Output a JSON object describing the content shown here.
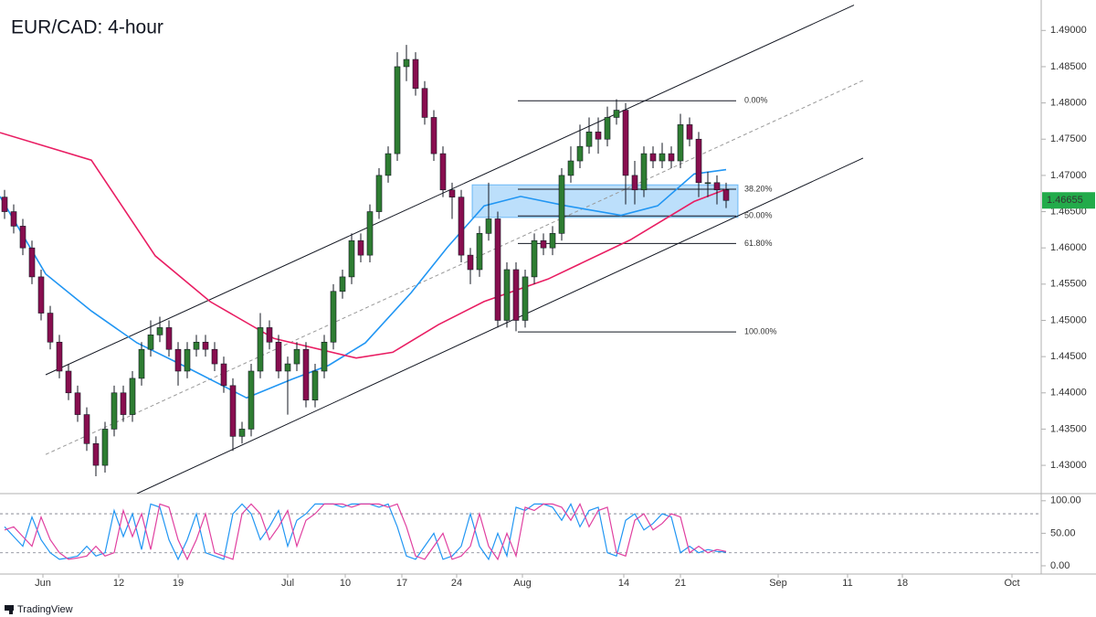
{
  "chart_data": [
    {
      "type": "candlestick",
      "title": "EUR/CAD: 4-hour",
      "xlim": [
        -0.5,
        113.5
      ],
      "xticks": [
        {
          "value": 4.2,
          "label": "Jun"
        },
        {
          "value": 12.5,
          "label": "12"
        },
        {
          "value": 19,
          "label": "19"
        },
        {
          "value": 31,
          "label": "Jul"
        },
        {
          "value": 37.3,
          "label": "10"
        },
        {
          "value": 43.5,
          "label": "17"
        },
        {
          "value": 49.5,
          "label": "24"
        },
        {
          "value": 56.7,
          "label": "Aug"
        },
        {
          "value": 67.8,
          "label": "14"
        },
        {
          "value": 74,
          "label": "21"
        },
        {
          "value": 84.7,
          "label": "Sep"
        },
        {
          "value": 92.3,
          "label": "11"
        },
        {
          "value": 98.3,
          "label": "18"
        },
        {
          "value": 110.3,
          "label": "Oct"
        }
      ],
      "ylim": [
        1.4261,
        1.4942
      ],
      "yticks": [
        {
          "value": 1.49,
          "label": "1.49000"
        },
        {
          "value": 1.485,
          "label": "1.48500"
        },
        {
          "value": 1.48,
          "label": "1.48000"
        },
        {
          "value": 1.475,
          "label": "1.47500"
        },
        {
          "value": 1.47,
          "label": "1.47000"
        },
        {
          "value": 1.465,
          "label": "1.46500"
        },
        {
          "value": 1.46,
          "label": "1.46000"
        },
        {
          "value": 1.455,
          "label": "1.45500"
        },
        {
          "value": 1.45,
          "label": "1.45000"
        },
        {
          "value": 1.445,
          "label": "1.44500"
        },
        {
          "value": 1.44,
          "label": "1.44000"
        },
        {
          "value": 1.435,
          "label": "1.43500"
        },
        {
          "value": 1.43,
          "label": "1.43000"
        }
      ],
      "x": [
        0,
        1,
        2,
        3,
        4,
        5,
        6,
        7,
        8,
        9,
        10,
        11,
        12,
        13,
        14,
        15,
        16,
        17,
        18,
        19,
        20,
        21,
        22,
        23,
        24,
        25,
        26,
        27,
        28,
        29,
        30,
        31,
        32,
        33,
        34,
        35,
        36,
        37,
        38,
        39,
        40,
        41,
        42,
        43,
        44,
        45,
        46,
        47,
        48,
        49,
        50,
        51,
        52,
        53,
        54,
        55,
        56,
        57,
        58,
        59,
        60,
        61,
        62,
        63,
        64,
        65,
        66,
        67,
        68,
        69,
        70,
        71,
        72,
        73,
        74,
        75,
        76,
        77,
        78,
        79
      ],
      "open": [
        1.467,
        1.465,
        1.463,
        1.46,
        1.456,
        1.451,
        1.447,
        1.443,
        1.44,
        1.437,
        1.433,
        1.43,
        1.435,
        1.44,
        1.437,
        1.442,
        1.446,
        1.448,
        1.449,
        1.446,
        1.443,
        1.446,
        1.447,
        1.446,
        1.444,
        1.441,
        1.434,
        1.435,
        1.443,
        1.449,
        1.447,
        1.443,
        1.444,
        1.446,
        1.439,
        1.443,
        1.447,
        1.454,
        1.456,
        1.461,
        1.459,
        1.465,
        1.47,
        1.473,
        1.485,
        1.486,
        1.482,
        1.478,
        1.473,
        1.468,
        1.467,
        1.459,
        1.457,
        1.462,
        1.464,
        1.45,
        1.457,
        1.45,
        1.456,
        1.461,
        1.46,
        1.462,
        1.47,
        1.472,
        1.474,
        1.476,
        1.475,
        1.478,
        1.479,
        1.47,
        1.468,
        1.473,
        1.472,
        1.473,
        1.472,
        1.477,
        1.475,
        1.469,
        1.469,
        1.468
      ],
      "high": [
        1.468,
        1.466,
        1.464,
        1.461,
        1.457,
        1.452,
        1.448,
        1.444,
        1.441,
        1.438,
        1.434,
        1.436,
        1.441,
        1.441,
        1.443,
        1.447,
        1.45,
        1.4505,
        1.45,
        1.447,
        1.447,
        1.448,
        1.448,
        1.447,
        1.445,
        1.442,
        1.436,
        1.444,
        1.451,
        1.45,
        1.448,
        1.445,
        1.447,
        1.447,
        1.444,
        1.448,
        1.455,
        1.457,
        1.462,
        1.462,
        1.466,
        1.471,
        1.474,
        1.487,
        1.488,
        1.487,
        1.483,
        1.479,
        1.474,
        1.469,
        1.468,
        1.46,
        1.463,
        1.469,
        1.465,
        1.458,
        1.458,
        1.457,
        1.462,
        1.462,
        1.463,
        1.471,
        1.474,
        1.477,
        1.478,
        1.478,
        1.4795,
        1.4805,
        1.48,
        1.472,
        1.474,
        1.474,
        1.4745,
        1.474,
        1.4785,
        1.478,
        1.476,
        1.4705,
        1.47,
        1.469
      ],
      "low": [
        1.464,
        1.462,
        1.459,
        1.455,
        1.45,
        1.446,
        1.442,
        1.439,
        1.436,
        1.432,
        1.4285,
        1.429,
        1.434,
        1.436,
        1.436,
        1.441,
        1.445,
        1.447,
        1.445,
        1.441,
        1.442,
        1.445,
        1.445,
        1.443,
        1.44,
        1.432,
        1.433,
        1.434,
        1.442,
        1.446,
        1.442,
        1.437,
        1.443,
        1.438,
        1.438,
        1.442,
        1.446,
        1.453,
        1.455,
        1.458,
        1.458,
        1.464,
        1.469,
        1.472,
        1.483,
        1.481,
        1.477,
        1.472,
        1.467,
        1.464,
        1.458,
        1.455,
        1.456,
        1.461,
        1.449,
        1.449,
        1.4485,
        1.449,
        1.455,
        1.459,
        1.459,
        1.461,
        1.469,
        1.471,
        1.473,
        1.473,
        1.474,
        1.477,
        1.466,
        1.466,
        1.467,
        1.471,
        1.471,
        1.471,
        1.471,
        1.474,
        1.467,
        1.467,
        1.466,
        1.4655
      ],
      "close": [
        1.465,
        1.463,
        1.46,
        1.456,
        1.451,
        1.447,
        1.443,
        1.44,
        1.437,
        1.433,
        1.43,
        1.435,
        1.44,
        1.437,
        1.442,
        1.446,
        1.448,
        1.449,
        1.446,
        1.443,
        1.446,
        1.447,
        1.446,
        1.444,
        1.441,
        1.434,
        1.435,
        1.443,
        1.449,
        1.447,
        1.443,
        1.444,
        1.446,
        1.439,
        1.443,
        1.447,
        1.454,
        1.456,
        1.461,
        1.459,
        1.465,
        1.47,
        1.473,
        1.485,
        1.486,
        1.482,
        1.478,
        1.473,
        1.468,
        1.467,
        1.459,
        1.457,
        1.462,
        1.464,
        1.45,
        1.457,
        1.45,
        1.456,
        1.461,
        1.46,
        1.462,
        1.47,
        1.472,
        1.474,
        1.476,
        1.475,
        1.478,
        1.479,
        1.47,
        1.468,
        1.473,
        1.472,
        1.473,
        1.472,
        1.477,
        1.475,
        1.469,
        1.469,
        1.468,
        1.46655
      ],
      "up_color": "#2e7d32",
      "down_color": "#880e4f",
      "last_price": 1.46655,
      "last_price_color": "#22ab4a",
      "moving_averages": [
        {
          "color": "#2196f3",
          "x": [
            -0.5,
            4.5,
            9.5,
            14.5,
            19.5,
            26.5,
            31.5,
            35.5,
            39.5,
            44.5,
            48.5,
            52.5,
            56.5,
            61.5,
            67.5,
            71.5,
            75.5,
            79
          ],
          "values": [
            1.4671,
            1.4564,
            1.4513,
            1.4469,
            1.4438,
            1.4393,
            1.4419,
            1.4438,
            1.4469,
            1.4538,
            1.4601,
            1.4658,
            1.4671,
            1.4658,
            1.4645,
            1.4658,
            1.4702,
            1.4708
          ]
        },
        {
          "color": "#e91e63",
          "x": [
            -0.5,
            9.5,
            16.5,
            22.5,
            29.5,
            38.5,
            42.5,
            47.5,
            52.5,
            59.5,
            68.5,
            75.5,
            79
          ],
          "values": [
            1.4759,
            1.4721,
            1.4589,
            1.4526,
            1.4475,
            1.4448,
            1.4456,
            1.4494,
            1.4526,
            1.4557,
            1.4611,
            1.4664,
            1.4681
          ]
        }
      ],
      "trendlines": [
        {
          "x": [
            4.5,
            93
          ],
          "values": [
            1.4425,
            1.4935
          ],
          "dashed": false
        },
        {
          "x": [
            14.5,
            94
          ],
          "values": [
            1.4261,
            1.4724
          ],
          "dashed": false
        },
        {
          "x": [
            4.5,
            94
          ],
          "values": [
            1.4315,
            1.4831
          ],
          "dashed": true
        }
      ],
      "zone": {
        "x": [
          51.2,
          80.3
        ],
        "values": [
          1.4687,
          1.4642
        ],
        "color": "#2196f3"
      },
      "fib": {
        "x": [
          56.2,
          80.1
        ],
        "levels": [
          {
            "value": 1.4803,
            "label": "0.00%"
          },
          {
            "value": 1.4681,
            "label": "38.20%"
          },
          {
            "value": 1.4644,
            "label": "50.00%"
          },
          {
            "value": 1.4606,
            "label": "61.80%"
          },
          {
            "value": 1.4484,
            "label": "100.00%"
          }
        ]
      }
    },
    {
      "type": "line",
      "xlim": [
        -0.5,
        113.5
      ],
      "ylim": [
        -12.7,
        111
      ],
      "yticks": [
        {
          "value": 100,
          "label": "100.00"
        },
        {
          "value": 50,
          "label": "50.00"
        },
        {
          "value": 0,
          "label": "0.00"
        }
      ],
      "levels": [
        20,
        80
      ],
      "x": [
        0,
        1,
        2,
        3,
        4,
        5,
        6,
        7,
        8,
        9,
        10,
        11,
        12,
        13,
        14,
        15,
        16,
        17,
        18,
        19,
        20,
        21,
        22,
        23,
        24,
        25,
        26,
        27,
        28,
        29,
        30,
        31,
        32,
        33,
        34,
        35,
        36,
        37,
        38,
        39,
        40,
        41,
        42,
        43,
        44,
        45,
        46,
        47,
        48,
        49,
        50,
        51,
        52,
        53,
        54,
        55,
        56,
        57,
        58,
        59,
        60,
        61,
        62,
        63,
        64,
        65,
        66,
        67,
        68,
        69,
        70,
        71,
        72,
        73,
        74,
        75,
        76,
        77,
        78,
        79
      ],
      "series": [
        {
          "color": "#2196f3",
          "values": [
            60,
            45,
            30,
            75,
            40,
            20,
            10,
            12,
            15,
            30,
            15,
            20,
            85,
            45,
            80,
            25,
            95,
            90,
            40,
            10,
            40,
            80,
            20,
            15,
            10,
            80,
            95,
            80,
            40,
            60,
            85,
            30,
            70,
            80,
            95,
            95,
            95,
            90,
            95,
            95,
            95,
            90,
            95,
            60,
            15,
            10,
            30,
            50,
            10,
            15,
            30,
            80,
            30,
            10,
            50,
            15,
            90,
            85,
            95,
            95,
            90,
            70,
            95,
            60,
            85,
            90,
            20,
            15,
            70,
            80,
            55,
            65,
            80,
            75,
            20,
            30,
            20,
            25,
            22,
            21
          ]
        },
        {
          "color": "#e040a0",
          "values": [
            55,
            60,
            45,
            30,
            75,
            40,
            20,
            10,
            12,
            15,
            30,
            15,
            20,
            85,
            45,
            80,
            25,
            95,
            90,
            40,
            10,
            40,
            80,
            20,
            15,
            10,
            80,
            95,
            80,
            40,
            60,
            85,
            30,
            70,
            80,
            95,
            95,
            95,
            90,
            95,
            95,
            95,
            90,
            95,
            60,
            15,
            10,
            30,
            50,
            10,
            15,
            30,
            80,
            30,
            10,
            50,
            15,
            90,
            85,
            95,
            95,
            90,
            70,
            95,
            60,
            85,
            90,
            20,
            15,
            70,
            80,
            55,
            65,
            80,
            75,
            20,
            30,
            20,
            25,
            22
          ]
        }
      ]
    }
  ],
  "branding": "TradingView"
}
